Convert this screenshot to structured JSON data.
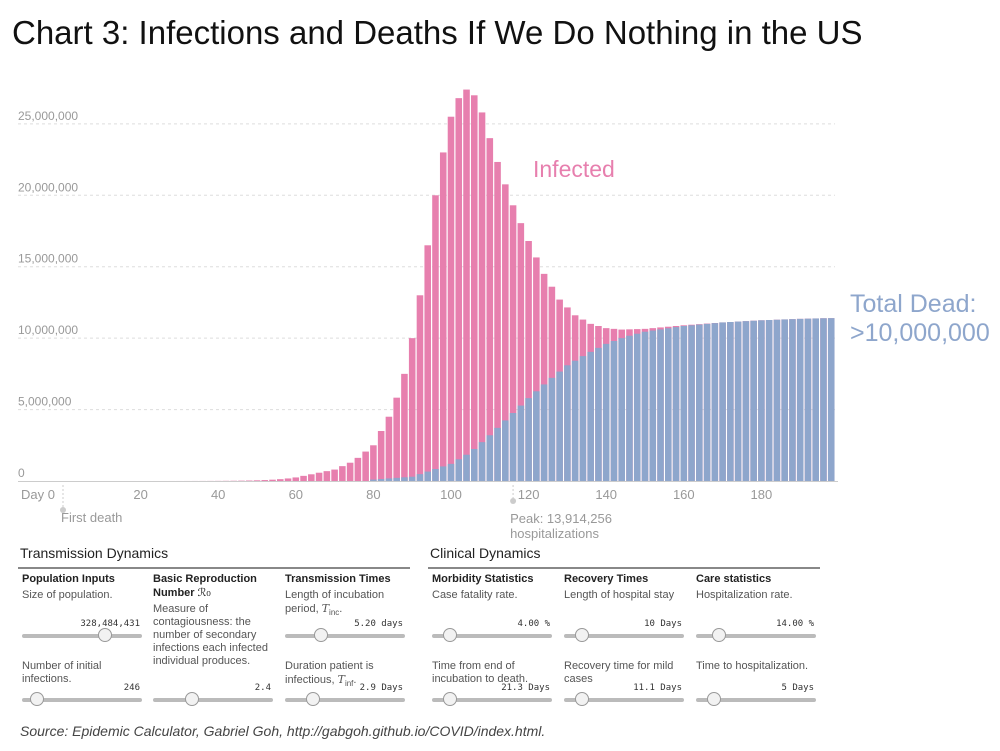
{
  "title": "Chart 3: Infections and Deaths If We Do Nothing in the US",
  "chart_data": {
    "type": "bar",
    "title": "Chart 3: Infections and Deaths If We Do Nothing in the US",
    "x_ticks": [
      "Day 0",
      "20",
      "40",
      "60",
      "80",
      "100",
      "120",
      "140",
      "160",
      "180"
    ],
    "y_ticks": [
      "0",
      "5,000,000",
      "10,000,000",
      "15,000,000",
      "20,000,000",
      "25,000,000"
    ],
    "ylim": [
      0,
      28000000
    ],
    "xlim": [
      0,
      198
    ],
    "grid": true,
    "series": [
      {
        "name": "Infected",
        "color": "#e77fae",
        "points": [
          [
            60,
            250000
          ],
          [
            70,
            800000
          ],
          [
            75,
            1400000
          ],
          [
            80,
            2500000
          ],
          [
            85,
            5000000
          ],
          [
            88,
            7500000
          ],
          [
            90,
            10000000
          ],
          [
            92,
            13000000
          ],
          [
            94,
            16500000
          ],
          [
            96,
            20000000
          ],
          [
            98,
            23000000
          ],
          [
            100,
            25500000
          ],
          [
            102,
            26800000
          ],
          [
            104,
            27400000
          ],
          [
            106,
            27000000
          ],
          [
            108,
            25800000
          ],
          [
            110,
            24000000
          ],
          [
            113,
            21500000
          ],
          [
            116,
            19300000
          ],
          [
            120,
            16800000
          ],
          [
            124,
            14500000
          ],
          [
            128,
            12700000
          ],
          [
            132,
            11600000
          ],
          [
            136,
            11000000
          ],
          [
            140,
            10700000
          ],
          [
            144,
            10600000
          ],
          [
            150,
            10650000
          ],
          [
            160,
            10900000
          ],
          [
            170,
            11100000
          ],
          [
            180,
            11250000
          ],
          [
            190,
            11350000
          ],
          [
            197,
            11400000
          ]
        ]
      },
      {
        "name": "Total Dead",
        "color": "#8ea6cc",
        "points": [
          [
            80,
            100000
          ],
          [
            90,
            300000
          ],
          [
            100,
            1200000
          ],
          [
            105,
            2000000
          ],
          [
            110,
            3200000
          ],
          [
            115,
            4500000
          ],
          [
            120,
            5800000
          ],
          [
            125,
            7000000
          ],
          [
            130,
            8100000
          ],
          [
            135,
            8900000
          ],
          [
            140,
            9600000
          ],
          [
            145,
            10100000
          ],
          [
            150,
            10450000
          ],
          [
            160,
            10850000
          ],
          [
            170,
            11100000
          ],
          [
            180,
            11250000
          ],
          [
            190,
            11350000
          ],
          [
            197,
            11400000
          ]
        ]
      }
    ],
    "annotations": {
      "first_death": "First death",
      "first_death_day": 0,
      "peak_line1": "Peak: 13,914,256",
      "peak_line2": "hospitalizations",
      "peak_day": 116,
      "infected_label": "Infected",
      "dead_label_line1": "Total Dead:",
      "dead_label_line2": ">10,000,000"
    }
  },
  "controls": {
    "transmission_title": "Transmission Dynamics",
    "clinical_title": "Clinical Dynamics",
    "population_head": "Population Inputs",
    "population_desc": "Size of population.",
    "population_value": "328,484,431",
    "population_pos": 0.72,
    "initial_desc": "Number of initial infections.",
    "initial_value": "246",
    "initial_pos": 0.08,
    "r0_head": "Basic Reproduction Number",
    "r0_symbol": "ℛ₀",
    "r0_desc": "Measure of contagiousness: the number of secondary infections each infected individual produces.",
    "r0_value": "2.4",
    "r0_pos": 0.3,
    "tt_head": "Transmission Times",
    "incubation_desc": "Length of incubation period,",
    "incubation_symbol": "T",
    "incubation_sub": "inc",
    "incubation_value": "5.20 days",
    "incubation_pos": 0.27,
    "infectious_desc": "Duration patient is infectious,",
    "infectious_symbol": "T",
    "infectious_sub": "inf",
    "infectious_value": "2.9 Days",
    "infectious_pos": 0.2,
    "morbidity_head": "Morbidity Statistics",
    "cfr_desc": "Case fatality rate.",
    "cfr_value": "4.00 %",
    "cfr_pos": 0.1,
    "death_time_desc": "Time from end of incubation to death.",
    "death_time_value": "21.3 Days",
    "death_time_pos": 0.1,
    "recovery_head": "Recovery Times",
    "hospital_stay_desc": "Length of hospital stay",
    "hospital_stay_value": "10 Days",
    "hospital_stay_pos": 0.1,
    "mild_recovery_desc": "Recovery time for mild cases",
    "mild_recovery_value": "11.1 Days",
    "mild_recovery_pos": 0.1,
    "care_head": "Care statistics",
    "hosp_rate_desc": "Hospitalization rate.",
    "hosp_rate_value": "14.00 %",
    "hosp_rate_pos": 0.15,
    "time_to_hosp_desc": "Time to hospitalization.",
    "time_to_hosp_value": "5 Days",
    "time_to_hosp_pos": 0.1
  },
  "source": "Source: Epidemic Calculator, Gabriel Goh, http://gabgoh.github.io/COVID/index.html."
}
